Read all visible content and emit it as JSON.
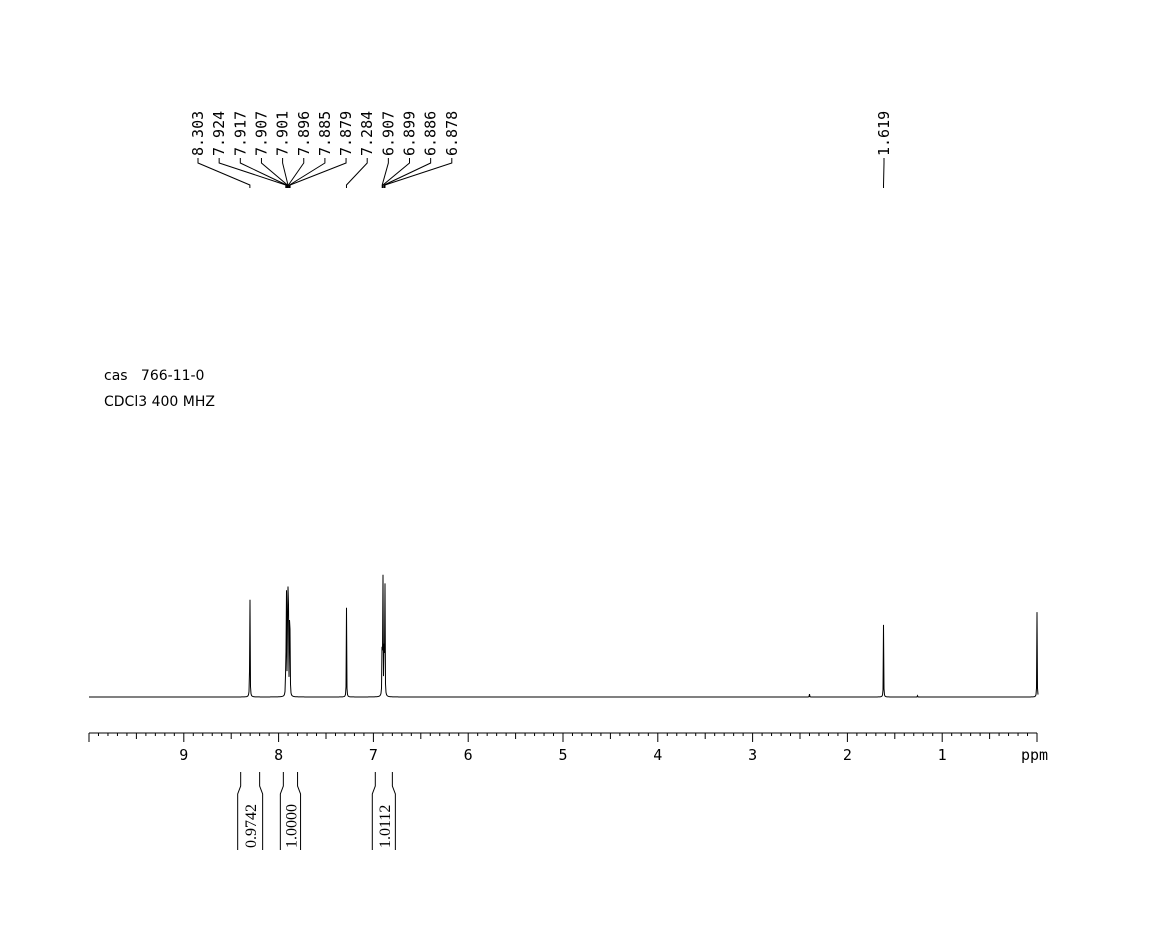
{
  "sample_info": {
    "line1": "cas   766-11-0",
    "line2": "CDCl3 400 MHZ"
  },
  "chart_data": {
    "type": "line",
    "title": "",
    "xlabel": "ppm",
    "ylabel": "",
    "x_axis_reversed": true,
    "xlim": [
      10.0,
      0.0
    ],
    "grid": false,
    "legend": "none",
    "x_tick_labels": [
      "9",
      "8",
      "7",
      "6",
      "5",
      "4",
      "3",
      "2",
      "1"
    ],
    "color": "#000000",
    "peaks": [
      {
        "shift": 8.303,
        "relative_height": 1.0
      },
      {
        "shift": 7.924,
        "relative_height": 0.48
      },
      {
        "shift": 7.917,
        "relative_height": 0.68
      },
      {
        "shift": 7.907,
        "relative_height": 0.5
      },
      {
        "shift": 7.901,
        "relative_height": 0.62
      },
      {
        "shift": 7.896,
        "relative_height": 0.55
      },
      {
        "shift": 7.885,
        "relative_height": 0.45
      },
      {
        "shift": 7.879,
        "relative_height": 0.46
      },
      {
        "shift": 7.284,
        "relative_height": 0.61
      },
      {
        "shift": 6.907,
        "relative_height": 0.8
      },
      {
        "shift": 6.899,
        "relative_height": 0.78
      },
      {
        "shift": 6.886,
        "relative_height": 0.76
      },
      {
        "shift": 6.878,
        "relative_height": 0.75
      },
      {
        "shift": 2.4,
        "relative_height": 0.02
      },
      {
        "shift": 1.619,
        "relative_height": 0.49
      },
      {
        "shift": 1.26,
        "relative_height": 0.01
      },
      {
        "shift": 0.0,
        "relative_height": 0.57
      }
    ],
    "peak_labels": [
      "8.303",
      "7.924",
      "7.917",
      "7.907",
      "7.901",
      "7.896",
      "7.885",
      "7.879",
      "7.284",
      "6.907",
      "6.899",
      "6.886",
      "6.878",
      "1.619"
    ],
    "integrals": [
      {
        "label": "0.9742",
        "from": 8.4,
        "to": 8.2
      },
      {
        "label": "1.0000",
        "from": 7.95,
        "to": 7.8
      },
      {
        "label": "1.0112",
        "from": 6.98,
        "to": 6.8
      }
    ]
  }
}
